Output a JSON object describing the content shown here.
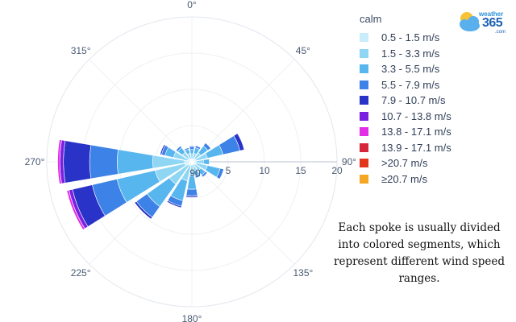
{
  "chart_data": {
    "type": "windrose",
    "angular_ticks": [
      "0°",
      "45°",
      "90°",
      "135°",
      "180°",
      "225°",
      "270°",
      "315°"
    ],
    "radial_ticks": [
      "5",
      "10",
      "15",
      "20"
    ],
    "radial_range": [
      0,
      20
    ],
    "inner_label": "90",
    "legend_title": "calm",
    "legend_placement": "right",
    "series": [
      {
        "name": "0.5 - 1.5 m/s",
        "color": "#c7eefa"
      },
      {
        "name": "1.5 - 3.3 m/s",
        "color": "#8fd6f4"
      },
      {
        "name": "3.3 - 5.5 m/s",
        "color": "#58b6ee"
      },
      {
        "name": "5.5 - 7.9 m/s",
        "color": "#3d82e6"
      },
      {
        "name": "7.9 - 10.7 m/s",
        "color": "#2a33c8"
      },
      {
        "name": "10.7 - 13.8 m/s",
        "color": "#7a21e0"
      },
      {
        "name": "13.8 - 17.1 m/s",
        "color": "#e22fe6"
      },
      {
        "name": "13.9 - 17.1 m/s",
        "color": "#d6263c"
      },
      {
        "name": ">20.7 m/s",
        "color": "#e2361d"
      },
      {
        "name": "≥20.7 m/s",
        "color": "#f5a623"
      }
    ],
    "directions": [
      {
        "deg": 0,
        "values": [
          0.4,
          0.7,
          0.6,
          0.4,
          0.1
        ]
      },
      {
        "deg": 22.5,
        "values": [
          0.4,
          0.8,
          0.8,
          0.3
        ]
      },
      {
        "deg": 45,
        "values": [
          0.5,
          1.0,
          1.2,
          0.5
        ]
      },
      {
        "deg": 67.5,
        "values": [
          0.6,
          1.6,
          2.2,
          2.4,
          0.6
        ]
      },
      {
        "deg": 90,
        "values": [
          0.6,
          1.0,
          0.8
        ]
      },
      {
        "deg": 112.5,
        "values": [
          0.6,
          1.6,
          1.8,
          0.5
        ]
      },
      {
        "deg": 135,
        "values": [
          0.5,
          1.0,
          0.8,
          0.3
        ]
      },
      {
        "deg": 157.5,
        "values": [
          0.4,
          0.9,
          0.7,
          0.3
        ]
      },
      {
        "deg": 180,
        "values": [
          0.4,
          1.6,
          1.8,
          0.9,
          0.2
        ]
      },
      {
        "deg": 202.5,
        "values": [
          0.5,
          2.2,
          2.8,
          0.8,
          0.2
        ]
      },
      {
        "deg": 225,
        "values": [
          0.6,
          3.2,
          3.8,
          1.8,
          0.3
        ]
      },
      {
        "deg": 247.5,
        "values": [
          1.0,
          4.2,
          5.4,
          3.5,
          2.8,
          0.5,
          0.3
        ]
      },
      {
        "deg": 270,
        "values": [
          1.0,
          4.4,
          4.9,
          3.8,
          3.6,
          0.5,
          0.3
        ]
      },
      {
        "deg": 292.5,
        "values": [
          0.6,
          2.0,
          1.2,
          0.5,
          0.2
        ]
      },
      {
        "deg": 315,
        "values": [
          0.5,
          1.1,
          0.8,
          0.3
        ]
      },
      {
        "deg": 337.5,
        "values": [
          0.4,
          0.8,
          0.6,
          0.2
        ]
      }
    ]
  },
  "note": "Each spoke is usually divided into colored segments, which represent different wind speed ranges."
}
